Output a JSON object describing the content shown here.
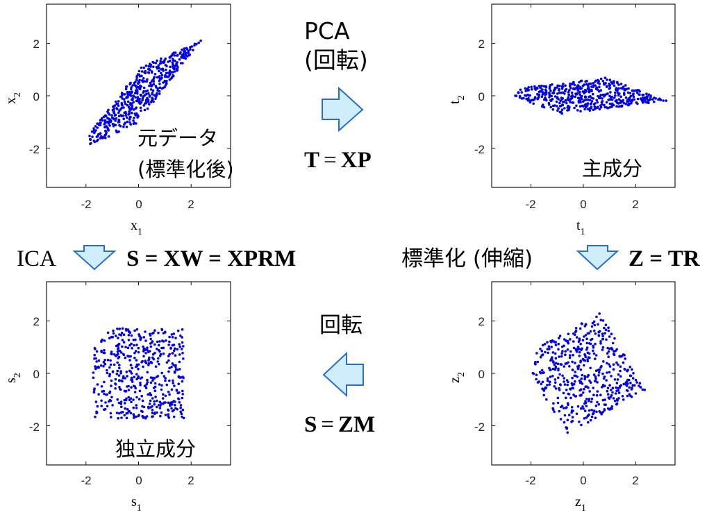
{
  "colors": {
    "points": "#0000e6",
    "arrow_fill": "#cfeefc",
    "arrow_stroke": "#2b6cc4"
  },
  "panels": {
    "top_left": {
      "xlabel": "x",
      "xsub": "1",
      "ylabel": "x",
      "ysub": "2",
      "caption_line1": "元データ",
      "caption_line2": "(標準化後)",
      "xticks": [
        "-2",
        "0",
        "2"
      ],
      "yticks": [
        "2",
        "0",
        "-2"
      ]
    },
    "top_right": {
      "xlabel": "t",
      "xsub": "1",
      "ylabel": "t",
      "ysub": "2",
      "caption_line1": "主成分",
      "xticks": [
        "-2",
        "0",
        "2"
      ],
      "yticks": [
        "2",
        "0",
        "-2"
      ]
    },
    "bottom_left": {
      "xlabel": "s",
      "xsub": "1",
      "ylabel": "s",
      "ysub": "2",
      "caption_line1": "独立成分",
      "xticks": [
        "-2",
        "0",
        "2"
      ],
      "yticks": [
        "2",
        "0",
        "-2"
      ]
    },
    "bottom_right": {
      "xlabel": "z",
      "xsub": "1",
      "ylabel": "z",
      "ysub": "2",
      "xticks": [
        "-2",
        "0",
        "2"
      ],
      "yticks": [
        "2",
        "0",
        "-2"
      ]
    }
  },
  "transforms": {
    "pca": {
      "title": "PCA",
      "subtitle": "(回転)",
      "eq_lhs": "T",
      "eq_rhs": "XP",
      "eq_sign": "="
    },
    "ica": {
      "label": "ICA",
      "eq": "S = XW = XPRM"
    },
    "standardize": {
      "label": "標準化 (伸縮)",
      "eq": "Z = TR"
    },
    "rotate": {
      "title": "回転",
      "eq_lhs": "S",
      "eq_rhs": "ZM",
      "eq_sign": "="
    }
  },
  "chart_data": [
    {
      "type": "scatter",
      "name": "x",
      "xlim": [
        -3.5,
        3.5
      ],
      "ylim": [
        -3.5,
        3.5
      ],
      "xticks": [
        -2,
        0,
        2
      ],
      "yticks": [
        -2,
        0,
        2
      ],
      "distribution": "correlated gaussian along y=x",
      "n_points": 500
    },
    {
      "type": "scatter",
      "name": "t",
      "xlim": [
        -3.5,
        3.5
      ],
      "ylim": [
        -3.5,
        3.5
      ],
      "xticks": [
        -2,
        0,
        2
      ],
      "yticks": [
        -2,
        0,
        2
      ],
      "distribution": "elongated along t1, t1 in [-3.2,3.1], t2 in [-0.7,0.7]",
      "n_points": 500
    },
    {
      "type": "scatter",
      "name": "s",
      "xlim": [
        -3.5,
        3.5
      ],
      "ylim": [
        -3.5,
        3.5
      ],
      "xticks": [
        -2,
        0,
        2
      ],
      "yticks": [
        -2,
        0,
        2
      ],
      "distribution": "uniform square s1,s2 in [-1.75,1.75]",
      "n_points": 500
    },
    {
      "type": "scatter",
      "name": "z",
      "xlim": [
        -3.5,
        3.5
      ],
      "ylim": [
        -3.5,
        3.5
      ],
      "xticks": [
        -2,
        0,
        2
      ],
      "yticks": [
        -2,
        0,
        2
      ],
      "distribution": "rotated uniform square (diamond), z1 in [-2.3,2.3], z2 in [-2.3,2.2]",
      "n_points": 500
    }
  ]
}
